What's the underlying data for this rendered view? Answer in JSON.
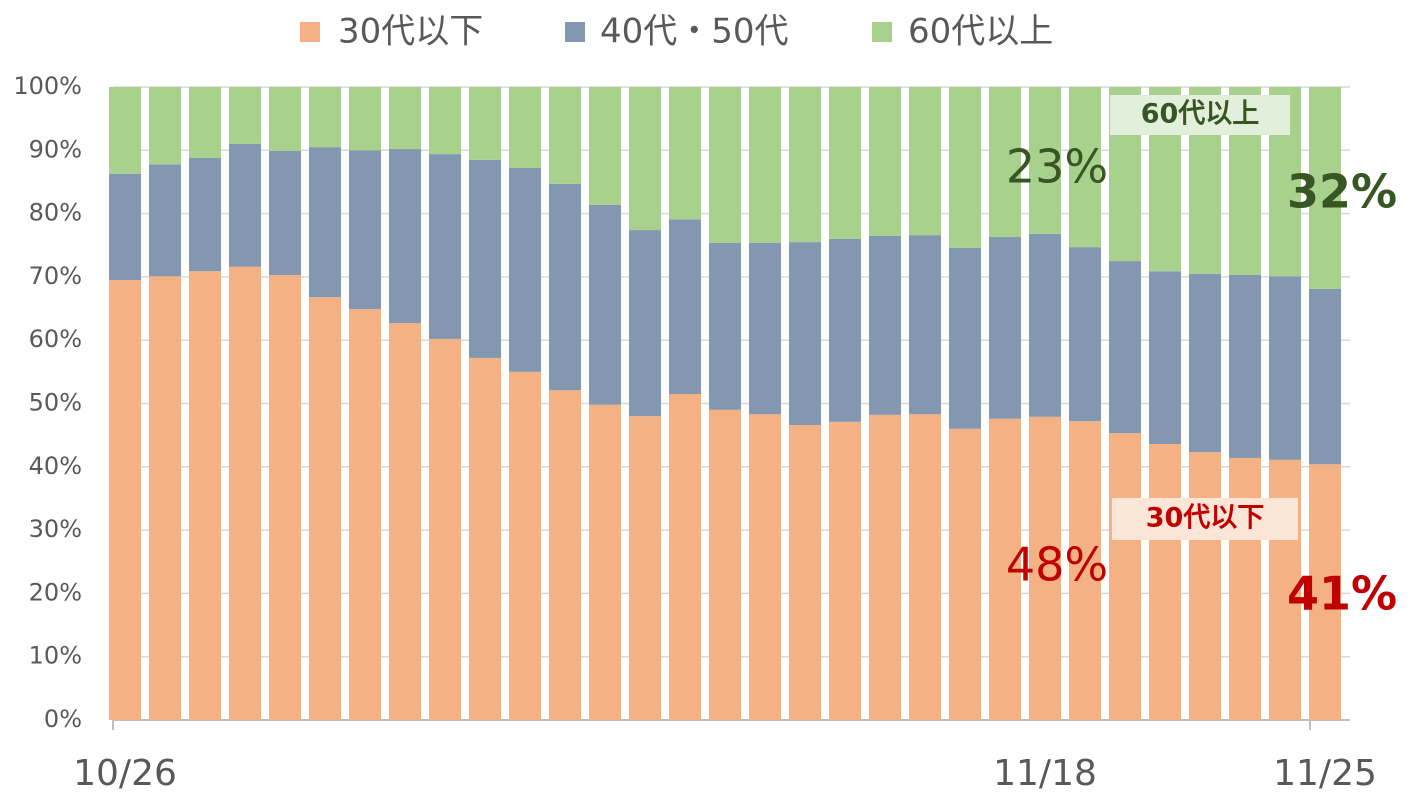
{
  "chart_data": {
    "type": "stacked_bar_percent",
    "categories": [
      "10/26",
      null,
      null,
      null,
      null,
      null,
      null,
      null,
      null,
      null,
      null,
      null,
      null,
      null,
      null,
      null,
      null,
      null,
      null,
      null,
      null,
      null,
      null,
      "11/18",
      null,
      null,
      null,
      null,
      null,
      null,
      "11/25"
    ],
    "series": [
      {
        "name": "30代以下",
        "color": "#f4b183",
        "values": [
          69.5,
          70.1,
          70.9,
          71.6,
          70.3,
          66.8,
          64.9,
          62.7,
          60.2,
          57.2,
          55.0,
          52.1,
          49.8,
          48.0,
          51.5,
          49.0,
          48.3,
          46.6,
          47.1,
          48.2,
          48.3,
          46.0,
          47.6,
          47.9,
          47.2,
          45.3,
          43.6,
          42.3,
          41.4,
          41.1,
          40.4
        ]
      },
      {
        "name": "40代・50代",
        "color": "#8497b0",
        "values": [
          16.8,
          17.7,
          17.9,
          19.4,
          19.6,
          23.7,
          25.1,
          27.5,
          29.2,
          31.3,
          32.2,
          32.6,
          31.6,
          29.4,
          27.6,
          26.4,
          27.1,
          28.9,
          28.9,
          28.3,
          28.3,
          28.6,
          28.7,
          28.9,
          27.5,
          27.2,
          27.3,
          28.2,
          28.9,
          29.0,
          27.7
        ]
      },
      {
        "name": "60代以上",
        "color": "#a9d18e",
        "values": [
          13.7,
          12.2,
          11.2,
          9.0,
          10.1,
          9.5,
          10.0,
          9.8,
          10.6,
          11.5,
          12.8,
          15.3,
          18.6,
          22.6,
          20.9,
          24.6,
          24.6,
          24.5,
          24.0,
          23.5,
          23.4,
          25.4,
          23.7,
          23.2,
          25.3,
          27.5,
          29.1,
          29.5,
          29.7,
          29.9,
          31.9
        ]
      }
    ],
    "ylim": [
      0,
      100
    ],
    "yticks": [
      {
        "value": 0,
        "label": "0%"
      },
      {
        "value": 10,
        "label": "10%"
      },
      {
        "value": 20,
        "label": "20%"
      },
      {
        "value": 30,
        "label": "30%"
      },
      {
        "value": 40,
        "label": "40%"
      },
      {
        "value": 50,
        "label": "50%"
      },
      {
        "value": 60,
        "label": "60%"
      },
      {
        "value": 70,
        "label": "70%"
      },
      {
        "value": 80,
        "label": "80%"
      },
      {
        "value": 90,
        "label": "90%"
      },
      {
        "value": 100,
        "label": "100%"
      }
    ],
    "grid": true,
    "legend": "top",
    "annotations": [
      {
        "text": "23%",
        "color": "#375623"
      },
      {
        "text": "32%",
        "color": "#375623"
      },
      {
        "text": "48%",
        "color": "#c00000"
      },
      {
        "text": "41%",
        "color": "#c00000"
      },
      {
        "text": "60代以上",
        "color": "#375623"
      },
      {
        "text": "30代以下",
        "color": "#c00000"
      }
    ]
  }
}
